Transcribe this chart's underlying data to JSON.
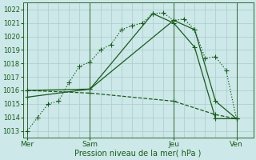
{
  "xlabel": "Pression niveau de la mer( hPa )",
  "bg_color": "#cce8e8",
  "grid_color": "#aacccc",
  "line_color": "#1a5c1a",
  "day_line_color": "#336633",
  "ylim": [
    1012.5,
    1022.5
  ],
  "yticks": [
    1013,
    1014,
    1015,
    1016,
    1017,
    1018,
    1019,
    1020,
    1021,
    1022
  ],
  "xtick_labels": [
    "Mer",
    "Sam",
    "Jeu",
    "Ven"
  ],
  "xtick_positions": [
    0,
    3,
    7,
    10
  ],
  "xlim": [
    -0.2,
    10.8
  ],
  "series1": {
    "x": [
      0,
      0.5,
      1,
      1.5,
      2,
      2.5,
      3,
      3.5,
      4,
      4.5,
      5,
      5.5,
      6,
      6.5,
      7,
      7.5,
      8,
      8.5,
      9,
      9.5,
      10
    ],
    "y": [
      1013,
      1014,
      1015,
      1015.2,
      1016.6,
      1017.8,
      1018.1,
      1019.0,
      1019.4,
      1020.5,
      1020.8,
      1021.0,
      1021.7,
      1021.75,
      1021.2,
      1021.3,
      1020.5,
      1018.4,
      1018.5,
      1017.5,
      1013.9
    ],
    "linestyle": "dotted"
  },
  "series2": {
    "x": [
      0,
      3,
      7,
      8,
      9,
      10
    ],
    "y": [
      1016.0,
      1016.1,
      1021.2,
      1020.5,
      1015.2,
      1013.9
    ],
    "linestyle": "solid"
  },
  "series3": {
    "x": [
      0,
      3,
      6,
      7,
      8,
      9,
      10
    ],
    "y": [
      1015.5,
      1016.1,
      1021.7,
      1021.0,
      1019.2,
      1013.9,
      1013.9
    ],
    "linestyle": "solid"
  },
  "series4": {
    "x": [
      0,
      3,
      7,
      9,
      10
    ],
    "y": [
      1016.0,
      1015.8,
      1015.2,
      1014.2,
      1013.9
    ],
    "linestyle": "dashed"
  }
}
